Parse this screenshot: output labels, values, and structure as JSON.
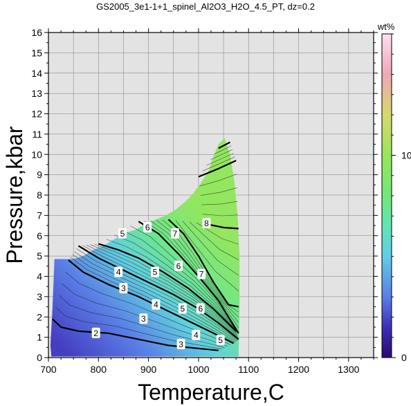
{
  "chart_data": {
    "type": "contour",
    "title": "GS2005_3e1-1+1_spinel_Al2O3_H2O_4.5_PT, dz=0.2",
    "xlabel": "Temperature,C",
    "ylabel": "Pressure,kbar",
    "xlim": [
      700,
      1350
    ],
    "ylim": [
      0,
      16
    ],
    "x_ticks": [
      700,
      800,
      900,
      1000,
      1100,
      1200,
      1300
    ],
    "y_ticks": [
      0,
      1,
      2,
      3,
      4,
      5,
      6,
      7,
      8,
      9,
      10,
      11,
      12,
      13,
      14,
      15,
      16
    ],
    "grid": true,
    "colorbar": {
      "label": "wt%",
      "range": [
        0,
        16
      ],
      "ticks": [
        0,
        10
      ],
      "stops": [
        {
          "v": 0,
          "color": "#2a0a6e"
        },
        {
          "v": 1.5,
          "color": "#3e2fb8"
        },
        {
          "v": 3,
          "color": "#5a7fe6"
        },
        {
          "v": 5,
          "color": "#61cde6"
        },
        {
          "v": 6.5,
          "color": "#60e6b4"
        },
        {
          "v": 8,
          "color": "#74e67a"
        },
        {
          "v": 10,
          "color": "#96e65c"
        },
        {
          "v": 12,
          "color": "#d8d86a"
        },
        {
          "v": 14,
          "color": "#f0a6b8"
        },
        {
          "v": 16,
          "color": "#fce0f2"
        }
      ]
    },
    "contours": [
      {
        "level": 2,
        "points": [
          [
            708,
            1.9
          ],
          [
            725,
            1.5
          ],
          [
            760,
            1.3
          ],
          [
            820,
            1.2
          ],
          [
            880,
            0.9
          ],
          [
            940,
            0.6
          ],
          [
            1000,
            0.45
          ],
          [
            1040,
            0.35
          ]
        ],
        "labels": [
          [
            795,
            1.2
          ]
        ]
      },
      {
        "level": 3,
        "points": [
          [
            740,
            4.8
          ],
          [
            770,
            4.2
          ],
          [
            820,
            3.6
          ],
          [
            880,
            3.0
          ],
          [
            930,
            2.4
          ],
          [
            980,
            1.8
          ],
          [
            1030,
            1.2
          ],
          [
            1070,
            0.7
          ]
        ],
        "labels": [
          [
            850,
            3.4
          ],
          [
            890,
            1.9
          ],
          [
            965,
            0.65
          ]
        ]
      },
      {
        "level": 4,
        "points": [
          [
            760,
            5.5
          ],
          [
            800,
            4.9
          ],
          [
            850,
            4.3
          ],
          [
            900,
            3.7
          ],
          [
            950,
            3.1
          ],
          [
            1000,
            2.4
          ],
          [
            1040,
            1.7
          ],
          [
            1080,
            0.9
          ]
        ],
        "labels": [
          [
            840,
            4.2
          ],
          [
            915,
            2.6
          ],
          [
            995,
            1.1
          ]
        ]
      },
      {
        "level": 5,
        "points": [
          [
            800,
            5.6
          ],
          [
            840,
            5.3
          ],
          [
            880,
            4.9
          ],
          [
            930,
            4.2
          ],
          [
            980,
            3.4
          ],
          [
            1030,
            2.4
          ],
          [
            1075,
            1.3
          ]
        ],
        "labels": [
          [
            848,
            6.1
          ],
          [
            913,
            4.2
          ],
          [
            968,
            2.4
          ],
          [
            1044,
            0.85
          ]
        ]
      },
      {
        "level": 6,
        "points": [
          [
            880,
            6.7
          ],
          [
            920,
            6.1
          ],
          [
            960,
            5.1
          ],
          [
            1000,
            4.0
          ],
          [
            1040,
            2.8
          ],
          [
            1080,
            1.2
          ]
        ],
        "labels": [
          [
            898,
            6.4
          ],
          [
            960,
            4.5
          ],
          [
            1004,
            2.4
          ]
        ]
      },
      {
        "level": 7,
        "points": [
          [
            940,
            6.8
          ],
          [
            970,
            6.1
          ],
          [
            1000,
            5.0
          ],
          [
            1030,
            3.7
          ],
          [
            1060,
            2.6
          ],
          [
            1080,
            2.5
          ]
        ],
        "labels": [
          [
            953,
            6.1
          ],
          [
            1006,
            4.1
          ]
        ]
      },
      {
        "level": 8,
        "points": [
          [
            1010,
            6.6
          ],
          [
            1050,
            6.4
          ],
          [
            1080,
            6.35
          ]
        ],
        "labels": [
          [
            1016,
            6.6
          ]
        ]
      },
      {
        "level": 9,
        "points": [
          [
            1000,
            8.9
          ],
          [
            1040,
            9.3
          ],
          [
            1075,
            9.7
          ]
        ],
        "labels": []
      },
      {
        "level": 10,
        "points": [
          [
            1040,
            10.3
          ],
          [
            1063,
            10.6
          ]
        ],
        "labels": []
      }
    ]
  }
}
